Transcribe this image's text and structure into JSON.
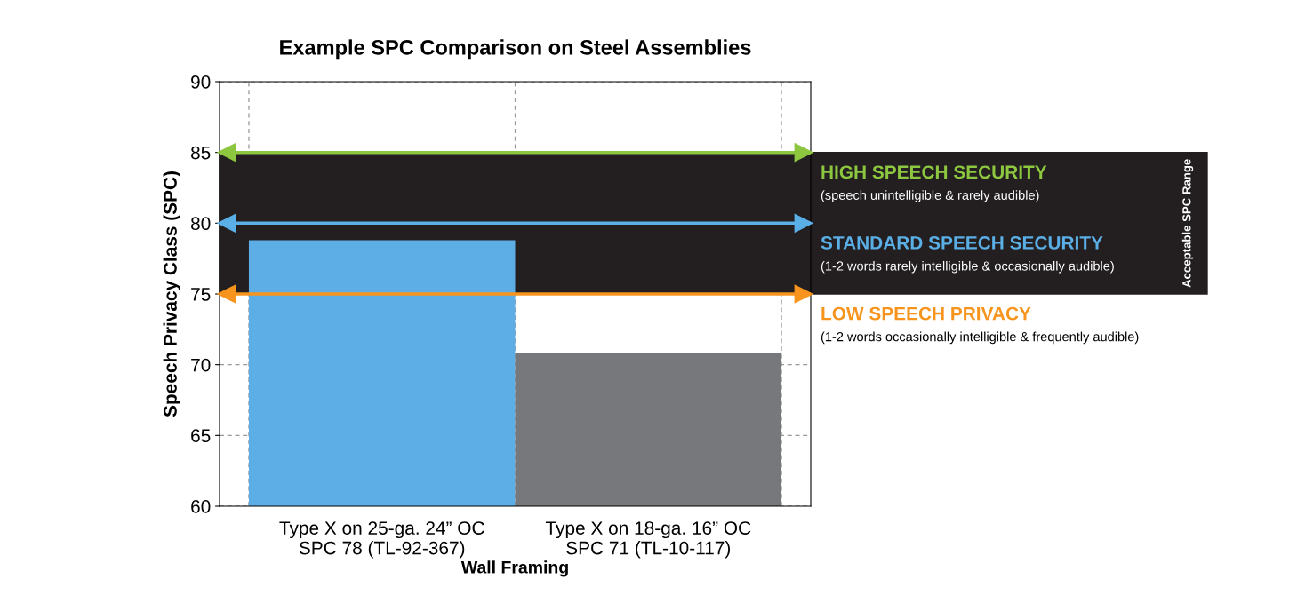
{
  "chart_data": {
    "type": "bar",
    "title": "Example SPC Comparison on Steel Assemblies",
    "xlabel": "Wall Framing",
    "ylabel": "Speech Privacy Class (SPC)",
    "categories": [
      "Type X on 25-ga. 24” OC\nSPC 78 (TL-92-367)",
      "Type X on 18-ga. 16” OC\nSPC 71 (TL-10-117)"
    ],
    "values": [
      78.8,
      70.8
    ],
    "colors": [
      "#5daee6",
      "#77787b"
    ],
    "legend": "right",
    "ylim": [
      60,
      90
    ],
    "yticks": [
      60,
      65,
      70,
      75,
      80,
      85,
      90
    ],
    "grid": true,
    "bands": [
      {
        "axis": "y",
        "from": 75,
        "to": 85,
        "label": "Acceptable SPC Range",
        "color": "#231f20"
      }
    ],
    "ref_lines": [
      {
        "axis": "y",
        "value": 85,
        "label": "HIGH SPEECH SECURITY",
        "color": "#8dc63f"
      },
      {
        "axis": "y",
        "value": 80,
        "label": "STANDARD SPEECH SECURITY",
        "color": "#5aafe6"
      },
      {
        "axis": "y",
        "value": 75,
        "label": "LOW SPEECH PRIVACY",
        "color": "#f7941d"
      }
    ],
    "annotations": [
      "(speech unintelligible & rarely audible)",
      "(1-2 words rarely intelligible & occasionally audible)",
      "(1-2 words occasionally intelligible & frequently audible)"
    ]
  }
}
